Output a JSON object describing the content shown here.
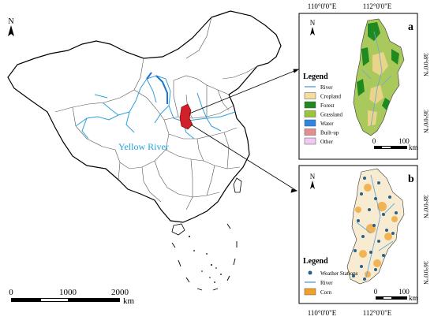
{
  "main_map": {
    "north_label": "N",
    "river_label": "Yellow River",
    "scale": {
      "ticks": [
        "0",
        "1000",
        "2000"
      ],
      "unit": "km"
    }
  },
  "top_coords": [
    "110°0'0\"E",
    "112°0'0\"E"
  ],
  "bottom_coords": [
    "110°0'0\"E",
    "112°0'0\"E"
  ],
  "panel_a": {
    "letter": "a",
    "north_label": "N",
    "lat_labels": [
      "38°0'0\"N",
      "36°0'0\"N"
    ],
    "legend_title": "Legend",
    "legend": [
      {
        "label": "River",
        "kind": "line",
        "color": "#6aa7d8"
      },
      {
        "label": "Cropland",
        "kind": "box",
        "color": "#f7dd9c"
      },
      {
        "label": "Forest",
        "kind": "box",
        "color": "#1f8a1f"
      },
      {
        "label": "Grassland",
        "kind": "box",
        "color": "#9cc43a"
      },
      {
        "label": "Water",
        "kind": "box",
        "color": "#2f86e0"
      },
      {
        "label": "Built-up",
        "kind": "box",
        "color": "#e38f8f"
      },
      {
        "label": "Other",
        "kind": "box",
        "color": "#f2c9f2"
      }
    ],
    "scale": {
      "ticks": [
        "0",
        "100"
      ],
      "unit": "km"
    }
  },
  "panel_b": {
    "letter": "b",
    "north_label": "N",
    "lat_labels": [
      "38°0'0\"N",
      "36°0'0\"N"
    ],
    "legend_title": "Legend",
    "legend": [
      {
        "label": "Weather Stations",
        "kind": "dot",
        "color": "#2b5f86"
      },
      {
        "label": "River",
        "kind": "line",
        "color": "#6aa7d8"
      },
      {
        "label": "Corn",
        "kind": "box",
        "color": "#f0a12a"
      }
    ],
    "scale": {
      "ticks": [
        "0",
        "100"
      ],
      "unit": "km"
    }
  }
}
